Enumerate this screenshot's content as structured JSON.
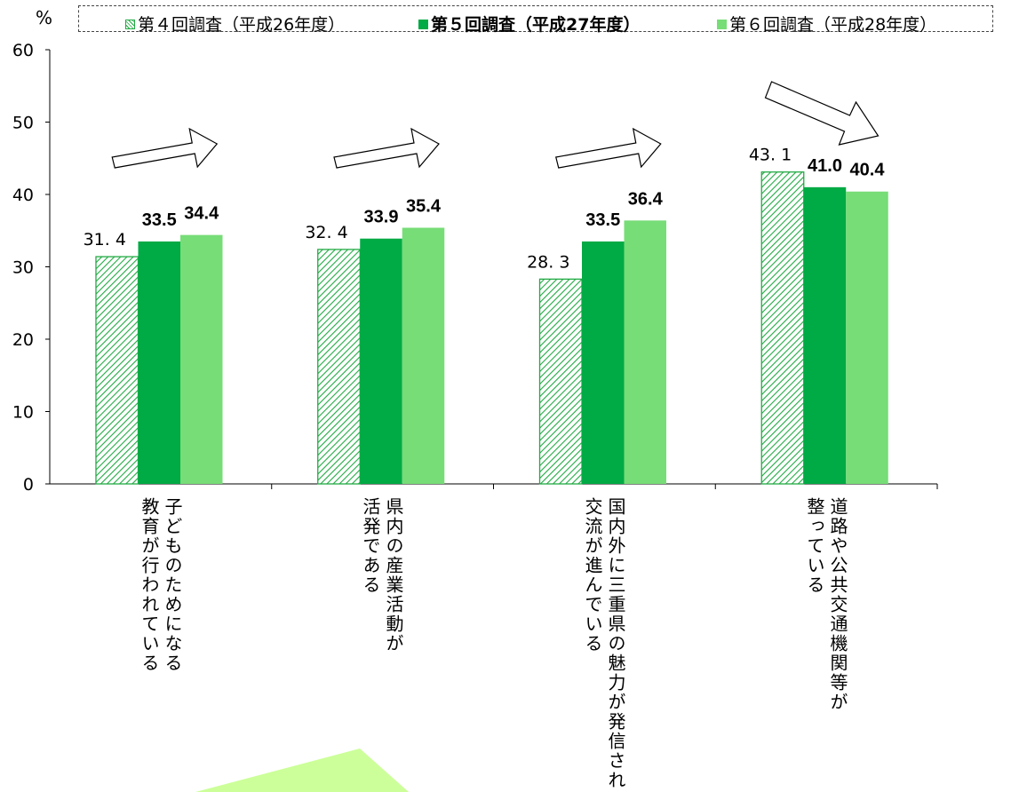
{
  "chart_data": {
    "type": "bar",
    "unit_label": "%",
    "categories": [
      "子どものためになる教育が行われている",
      "県内の産業活動が活発である",
      "国内外に三重県の魅力が発信され交流が進んでいる",
      "道路や公共交通機関等が整っている"
    ],
    "category_lines": [
      [
        "子どものためになる",
        "教育が行われている"
      ],
      [
        "県内の産業活動が",
        "活発である"
      ],
      [
        "国内外に三重県の魅力が発信され",
        "交流が進んでいる"
      ],
      [
        "道路や公共交通機関等が",
        "整っている"
      ]
    ],
    "series": [
      {
        "name": "第４回調査（平成26年度）",
        "values": [
          31.4,
          32.4,
          28.3,
          43.1
        ],
        "labels": [
          "31. 4",
          "32. 4",
          "28. 3",
          "43. 1"
        ],
        "color": "#22aa44",
        "style": "hatched"
      },
      {
        "name": "第５回調査（平成27年度）",
        "values": [
          33.5,
          33.9,
          33.5,
          41.0
        ],
        "labels": [
          "33.5",
          "33.9",
          "33.5",
          "41.0"
        ],
        "color": "#00aa44",
        "style": "solid"
      },
      {
        "name": "第６回調査（平成28年度）",
        "values": [
          34.4,
          35.4,
          36.4,
          40.4
        ],
        "labels": [
          "34.4",
          "35.4",
          "36.4",
          "40.4"
        ],
        "color": "#77dd77",
        "style": "solid"
      }
    ],
    "ylim": [
      0,
      60
    ],
    "yticks": [
      0,
      10,
      20,
      30,
      40,
      50,
      60
    ],
    "legend_position": "top",
    "trend_arrows": [
      "up",
      "up",
      "up",
      "down"
    ],
    "grid": false
  }
}
